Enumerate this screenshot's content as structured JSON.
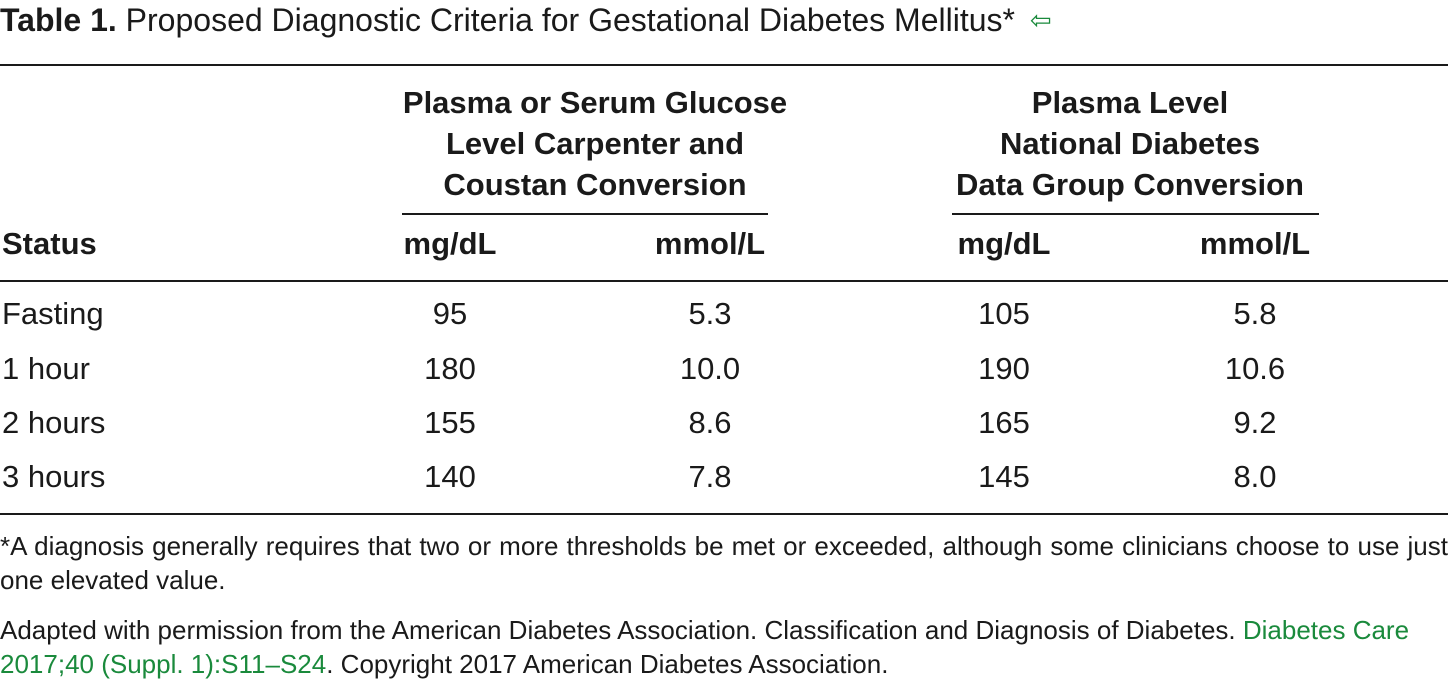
{
  "title": {
    "label": "Table 1.",
    "text": "Proposed Diagnostic Criteria for Gestational Diabetes Mellitus*",
    "back_icon": "⇦"
  },
  "groups": [
    {
      "lines": [
        "Plasma or Serum Glucose",
        "Level Carpenter and",
        "Coustan Conversion"
      ]
    },
    {
      "lines": [
        "Plasma Level",
        "National Diabetes",
        "Data Group Conversion"
      ]
    }
  ],
  "columns": {
    "status": "Status",
    "g1_mg": "mg/dL",
    "g1_mmol": "mmol/L",
    "g2_mg": "mg/dL",
    "g2_mmol": "mmol/L"
  },
  "rows": [
    {
      "status": "Fasting",
      "c1": "95",
      "c2": "5.3",
      "c3": "105",
      "c4": "5.8"
    },
    {
      "status": "1 hour",
      "c1": "180",
      "c2": "10.0",
      "c3": "190",
      "c4": "10.6"
    },
    {
      "status": "2 hours",
      "c1": "155",
      "c2": "8.6",
      "c3": "165",
      "c4": "9.2"
    },
    {
      "status": "3 hours",
      "c1": "140",
      "c2": "7.8",
      "c3": "145",
      "c4": "8.0"
    }
  ],
  "footnote": "*A diagnosis generally requires that two or more thresholds be met or exceeded, although some clinicians choose to use just one elevated value.",
  "source": {
    "prefix": "Adapted with permission from the American Diabetes Association. Classification and Diagnosis of Diabetes.",
    "link": "Diabetes Care 2017;40 (Suppl. 1):S11–S24",
    "suffix": ". Copyright 2017 American Diabetes Association."
  }
}
